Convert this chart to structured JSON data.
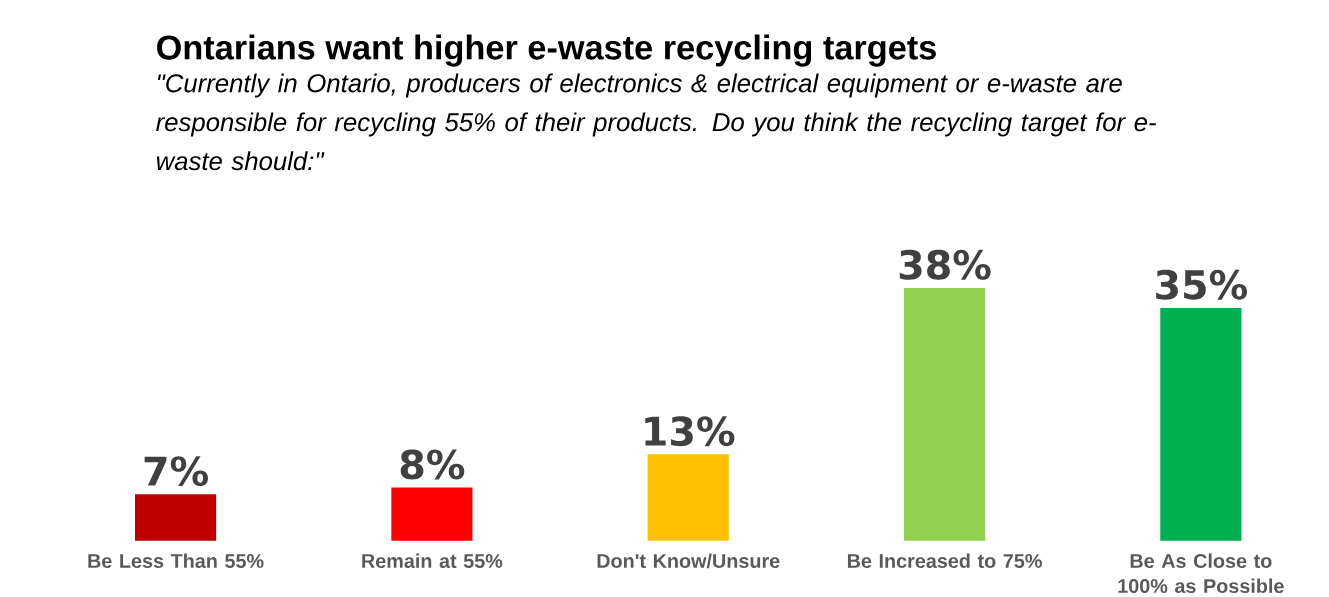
{
  "chart_data": {
    "type": "bar",
    "title": "Ontarians want higher e-waste recycling targets",
    "subtitle": "\"Currently in Ontario, producers of electronics & electrical equipment or e-waste are responsible for recycling 55% of their products. Do you think the recycling target for e-waste should:\"",
    "categories": [
      "Be Less Than 55%",
      "Remain at 55%",
      "Don't Know/Unsure",
      "Be Increased to 75%",
      "Be As Close to 100% as Possible"
    ],
    "values": [
      7,
      8,
      13,
      38,
      35
    ],
    "colors": [
      "#c00000",
      "#ff0000",
      "#ffc000",
      "#92d050",
      "#00b050"
    ],
    "value_labels": [
      "7%",
      "8%",
      "13%",
      "38%",
      "35%"
    ]
  }
}
